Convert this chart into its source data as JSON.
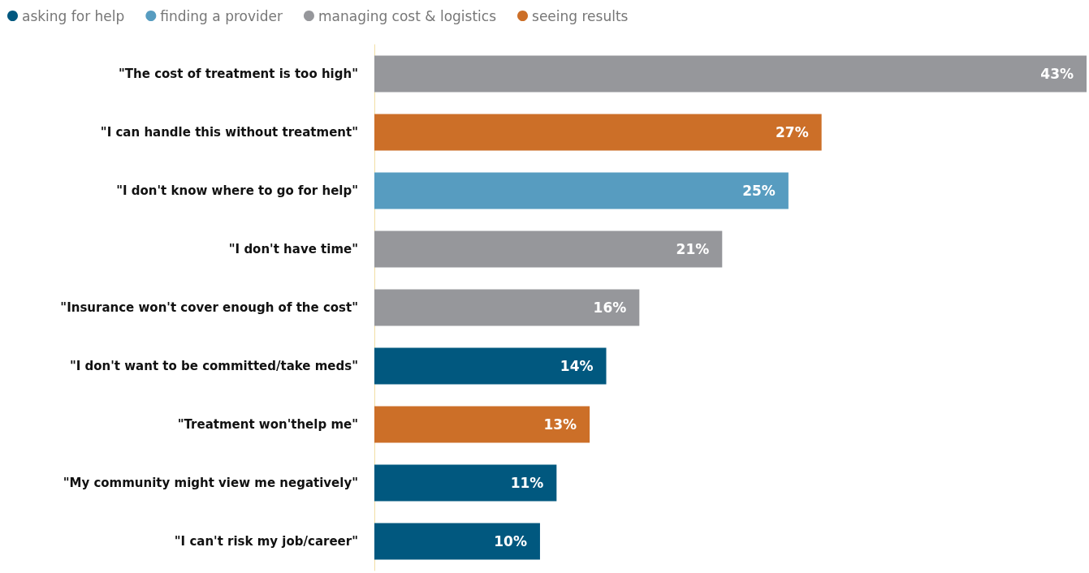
{
  "chart_data": {
    "type": "bar",
    "orientation": "horizontal",
    "stacked": true,
    "legend": "top left",
    "categories": [
      "\"The cost of treatment is too high\"",
      "\"I can handle this without treatment\"",
      "\"I don't know where to go for help\"",
      "\"I don't have time\"",
      "\"Insurance won't cover enough of the cost\"",
      "\"I don't want to be committed/take meds\"",
      "\"Treatment won'thelp me\"",
      "\"My community might view me negatively\"",
      "\"I can't risk my job/career\""
    ],
    "series": [
      {
        "name": "asking for help",
        "color": "#01587f",
        "values": [
          null,
          null,
          null,
          null,
          null,
          14,
          null,
          11,
          10
        ],
        "value_labels": [
          null,
          null,
          null,
          null,
          null,
          "14%",
          null,
          "11%",
          "10%"
        ]
      },
      {
        "name": "finding a provider",
        "color": "#579cc0",
        "values": [
          null,
          null,
          25,
          null,
          null,
          null,
          null,
          null,
          null
        ],
        "value_labels": [
          null,
          null,
          "25%",
          null,
          null,
          null,
          null,
          null,
          null
        ]
      },
      {
        "name": "managing cost & logistics",
        "color": "#96979b",
        "values": [
          43,
          null,
          null,
          21,
          16,
          null,
          null,
          null,
          null
        ],
        "value_labels": [
          "43%",
          null,
          null,
          "21%",
          "16%",
          null,
          null,
          null,
          null
        ]
      },
      {
        "name": "seeing results",
        "color": "#cc6f28",
        "values": [
          null,
          27,
          null,
          null,
          null,
          null,
          13,
          null,
          null
        ],
        "value_labels": [
          null,
          "27%",
          null,
          null,
          null,
          null,
          "13%",
          null,
          null
        ]
      }
    ]
  }
}
